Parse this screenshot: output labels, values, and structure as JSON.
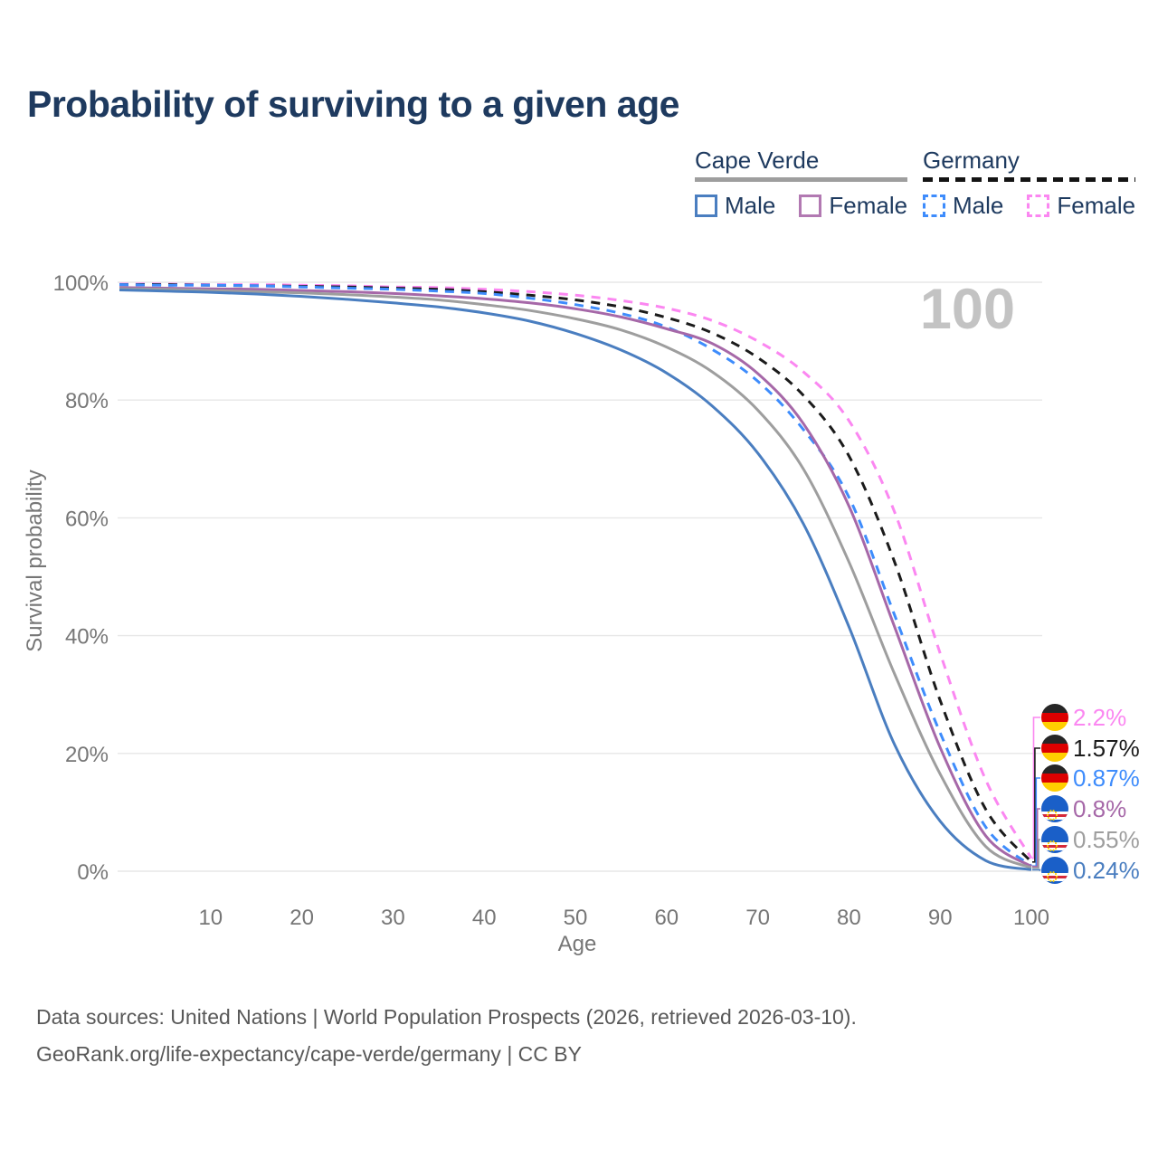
{
  "title": "Probability of surviving to a given age",
  "legend": {
    "groups": [
      {
        "name": "Cape Verde",
        "line_style": "solid",
        "underline_color": "#9e9e9e",
        "items": [
          {
            "label": "Male",
            "color": "#4a7ec0"
          },
          {
            "label": "Female",
            "color": "#b279b2"
          }
        ]
      },
      {
        "name": "Germany",
        "line_style": "dashed",
        "underline_color": "#141414",
        "items": [
          {
            "label": "Male",
            "color": "#3e8cfc"
          },
          {
            "label": "Female",
            "color": "#fb87f1"
          }
        ]
      }
    ]
  },
  "colors": {
    "title_text": "#1e3a5f",
    "axis_text": "#767676",
    "gridline": "#e7e7e7",
    "watermark": "#c3c3c3",
    "footer_text": "#585858"
  },
  "flags": {
    "germany": {
      "black": "#262626",
      "red": "#dd0000",
      "gold": "#ffce00"
    },
    "cape-verde": {
      "blue": "#1a5fc8",
      "red": "#d62839",
      "white": "#ffffff",
      "star": "#ffd200"
    }
  },
  "chart_data": {
    "type": "line",
    "xlabel": "Age",
    "ylabel": "Survival probability",
    "watermark": "100",
    "xlim": [
      0,
      100
    ],
    "ylim": [
      0,
      100
    ],
    "grid": "horizontal-only",
    "x_ticks": [
      10,
      20,
      30,
      40,
      50,
      60,
      70,
      80,
      90,
      100
    ],
    "y_ticks": [
      {
        "value": 0,
        "label": "0%"
      },
      {
        "value": 20,
        "label": "20%"
      },
      {
        "value": 40,
        "label": "40%"
      },
      {
        "value": 60,
        "label": "60%"
      },
      {
        "value": 80,
        "label": "80%"
      },
      {
        "value": 100,
        "label": "100%"
      }
    ],
    "x": [
      0,
      5,
      10,
      15,
      20,
      25,
      30,
      35,
      40,
      45,
      50,
      55,
      60,
      65,
      70,
      75,
      80,
      85,
      90,
      95,
      100
    ],
    "series": [
      {
        "name": "Germany Female",
        "country": "Germany",
        "sex": "Female",
        "color": "#fb87f1",
        "dashed": true,
        "flag": "germany",
        "end_label": "2.2%",
        "values": [
          99.7,
          99.7,
          99.6,
          99.6,
          99.5,
          99.4,
          99.2,
          99.1,
          98.8,
          98.4,
          97.8,
          96.9,
          95.6,
          93.5,
          90.0,
          84.8,
          76.5,
          61.0,
          37.0,
          15.5,
          2.2
        ]
      },
      {
        "name": "Germany Both sexes",
        "country": "Germany",
        "sex": "Both",
        "color": "#1b1b1b",
        "dashed": true,
        "flag": "germany",
        "end_label": "1.57%",
        "values": [
          99.6,
          99.6,
          99.5,
          99.4,
          99.3,
          99.2,
          99.0,
          98.8,
          98.4,
          97.8,
          97.0,
          95.8,
          94.0,
          91.4,
          87.2,
          80.8,
          70.5,
          52.5,
          29.0,
          10.5,
          1.57
        ]
      },
      {
        "name": "Germany Male",
        "country": "Germany",
        "sex": "Male",
        "color": "#3e8cfc",
        "dashed": true,
        "flag": "germany",
        "end_label": "0.87%",
        "values": [
          99.6,
          99.5,
          99.5,
          99.4,
          99.2,
          99.0,
          98.8,
          98.5,
          98.1,
          97.3,
          96.2,
          94.7,
          92.4,
          88.6,
          83.2,
          75.0,
          63.5,
          43.5,
          23.5,
          7.5,
          0.87
        ]
      },
      {
        "name": "Cape Verde Female",
        "country": "Cape Verde",
        "sex": "Female",
        "color": "#a668a8",
        "dashed": false,
        "flag": "cape-verde",
        "end_label": "0.8%",
        "values": [
          99.1,
          99.0,
          98.9,
          98.8,
          98.6,
          98.4,
          98.1,
          97.7,
          97.2,
          96.5,
          95.5,
          94.1,
          92.1,
          89.6,
          84.5,
          76.0,
          62.0,
          41.5,
          21.0,
          6.0,
          0.8
        ]
      },
      {
        "name": "Cape Verde Both sexes",
        "country": "Cape Verde",
        "sex": "Both",
        "color": "#9e9e9e",
        "dashed": false,
        "flag": "cape-verde",
        "end_label": "0.55%",
        "values": [
          98.9,
          98.8,
          98.6,
          98.4,
          98.2,
          97.9,
          97.5,
          97.0,
          96.2,
          95.2,
          93.8,
          91.9,
          89.0,
          84.8,
          78.3,
          68.3,
          52.5,
          33.5,
          16.5,
          4.2,
          0.55
        ]
      },
      {
        "name": "Cape Verde Male",
        "country": "Cape Verde",
        "sex": "Male",
        "color": "#4a7ec0",
        "dashed": false,
        "flag": "cape-verde",
        "end_label": "0.24%",
        "values": [
          98.7,
          98.5,
          98.3,
          98.0,
          97.6,
          97.1,
          96.5,
          95.8,
          94.8,
          93.4,
          91.3,
          88.5,
          84.6,
          79.0,
          71.0,
          59.0,
          41.5,
          21.5,
          8.5,
          1.8,
          0.24
        ]
      }
    ]
  },
  "footer": {
    "line1": "Data sources: United Nations | World Population Prospects (2026, retrieved 2026-03-10).",
    "line2": "GeoRank.org/life-expectancy/cape-verde/germany | CC BY"
  }
}
